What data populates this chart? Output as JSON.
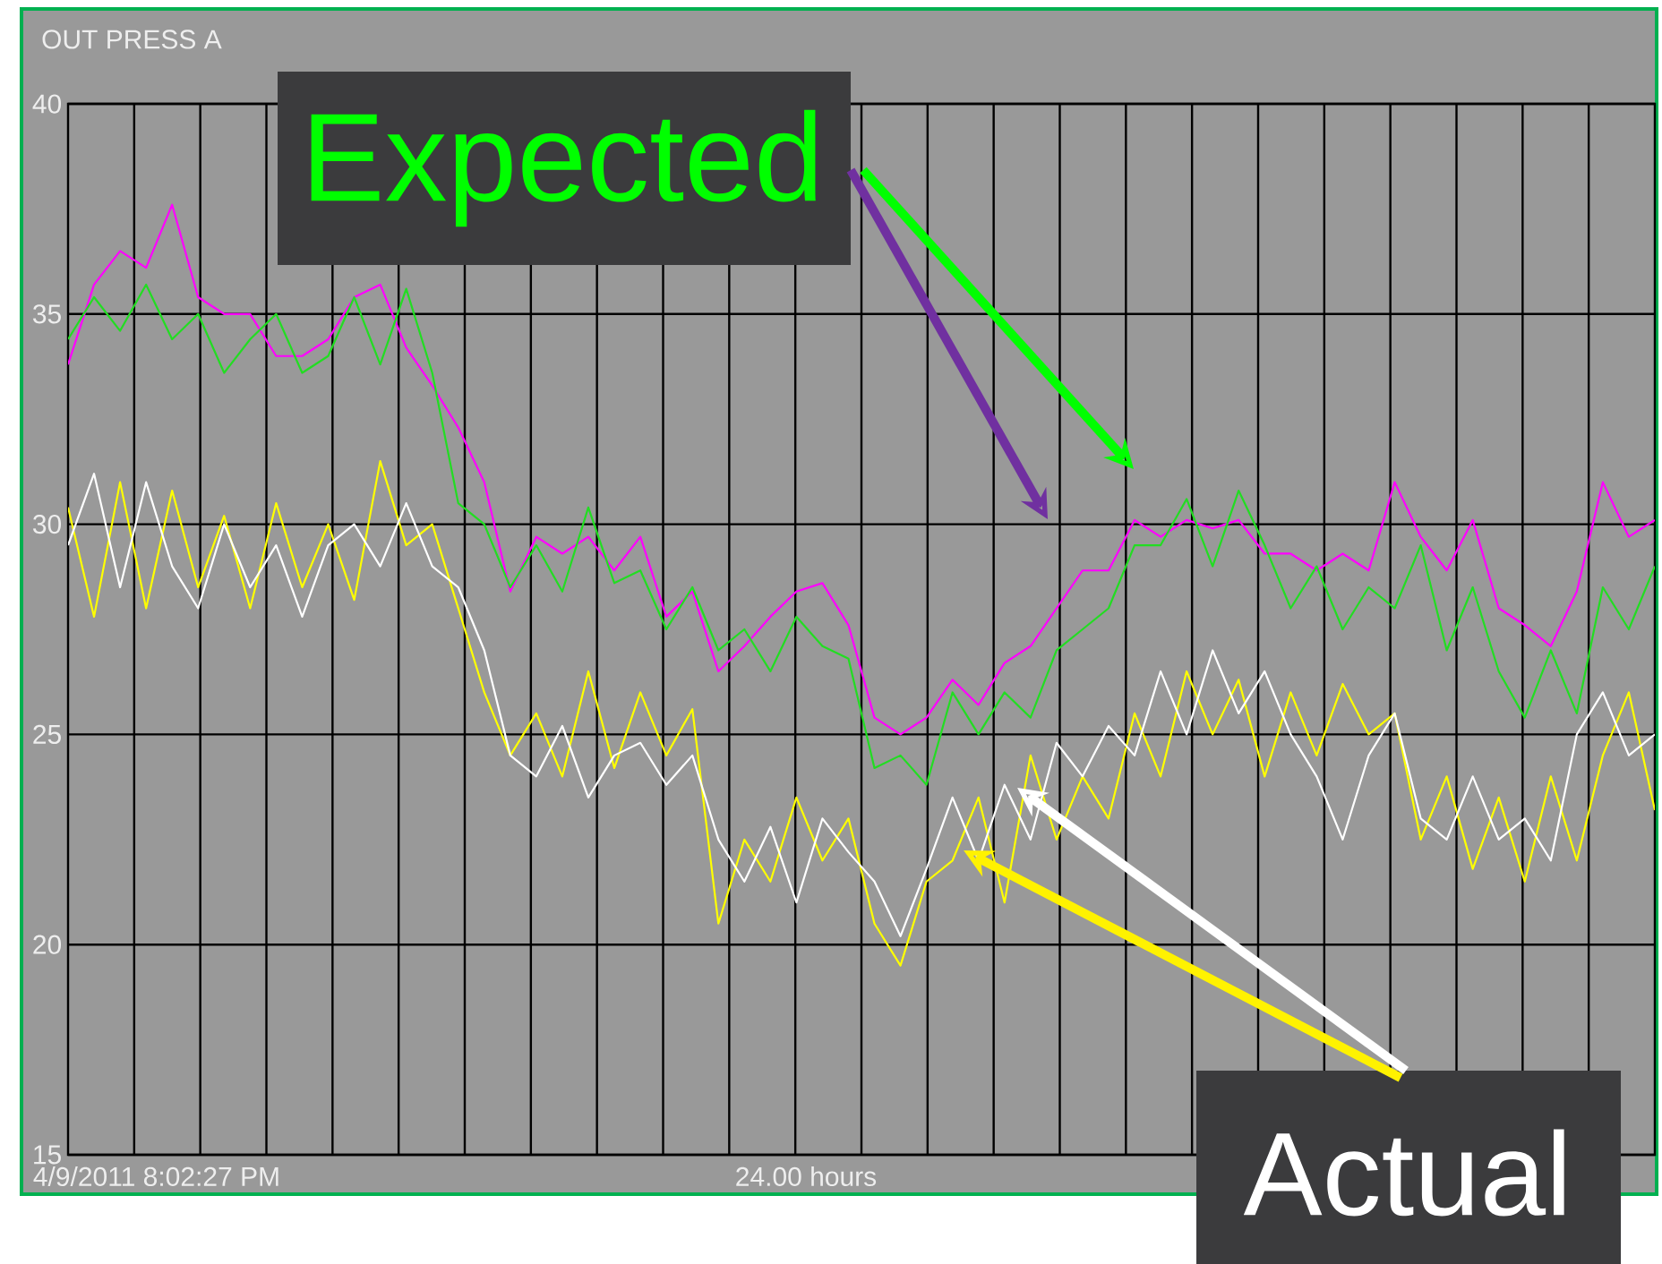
{
  "chart_data": {
    "type": "line",
    "title": "OUT PRESS A",
    "annotations": [
      "4/9/2011 8:02:27 PM",
      "24.00 hours",
      "Expected",
      "Actual"
    ],
    "categories": [
      null,
      null,
      null,
      null,
      null,
      null,
      null,
      null,
      null,
      null,
      null,
      null,
      null,
      null,
      null,
      null,
      null,
      null,
      null,
      null,
      null,
      null,
      null,
      null,
      null,
      null,
      null,
      null,
      null,
      null,
      null,
      null,
      null,
      null,
      null,
      null,
      null,
      null,
      null,
      null,
      null,
      null,
      null,
      null,
      null,
      null,
      null,
      null,
      null,
      null,
      null,
      null,
      null,
      null,
      null,
      null,
      null,
      null,
      null,
      null,
      null,
      null
    ],
    "series": [
      {
        "color": "#ff00ff",
        "values": [
          33.8,
          35.7,
          36.5,
          36.1,
          37.6,
          35.4,
          35.0,
          35.0,
          34.0,
          34.0,
          34.4,
          35.4,
          35.7,
          34.2,
          33.3,
          32.3,
          31.0,
          28.4,
          29.7,
          29.3,
          29.7,
          28.9,
          29.7,
          27.8,
          28.4,
          26.5,
          27.1,
          27.8,
          28.4,
          28.6,
          27.6,
          25.4,
          25.0,
          25.4,
          26.3,
          25.7,
          26.7,
          27.1,
          28.0,
          28.9,
          28.9,
          30.1,
          29.7,
          30.1,
          29.9,
          30.1,
          29.3,
          29.3,
          28.9,
          29.3,
          28.9,
          31.0,
          29.7,
          28.9,
          30.1,
          28.0,
          27.6,
          27.1,
          28.4,
          31.0,
          29.7,
          30.1
        ]
      },
      {
        "color": "#22dd22",
        "values": [
          34.4,
          35.4,
          34.6,
          35.7,
          34.4,
          35.0,
          33.6,
          34.4,
          35.0,
          33.6,
          34.0,
          35.4,
          33.8,
          35.6,
          33.6,
          30.5,
          30.0,
          28.5,
          29.5,
          28.4,
          30.4,
          28.6,
          28.9,
          27.5,
          28.5,
          27.0,
          27.5,
          26.5,
          27.8,
          27.1,
          26.8,
          24.2,
          24.5,
          23.8,
          26.0,
          25.0,
          26.0,
          25.4,
          27.0,
          27.5,
          28.0,
          29.5,
          29.5,
          30.6,
          29.0,
          30.8,
          29.5,
          28.0,
          29.0,
          27.5,
          28.5,
          28.0,
          29.5,
          27.0,
          28.5,
          26.5,
          25.4,
          27.0,
          25.5,
          28.5,
          27.5,
          29.0
        ]
      },
      {
        "color": "#ffff00",
        "values": [
          30.4,
          27.8,
          31.0,
          28.0,
          30.8,
          28.5,
          30.2,
          28.0,
          30.5,
          28.5,
          30.0,
          28.2,
          31.5,
          29.5,
          30.0,
          28.0,
          26.0,
          24.5,
          25.5,
          24.0,
          26.5,
          24.2,
          26.0,
          24.5,
          25.6,
          20.5,
          22.5,
          21.5,
          23.5,
          22.0,
          23.0,
          20.5,
          19.5,
          21.5,
          22.0,
          23.5,
          21.0,
          24.5,
          22.5,
          24.0,
          23.0,
          25.5,
          24.0,
          26.5,
          25.0,
          26.3,
          24.0,
          26.0,
          24.5,
          26.2,
          25.0,
          25.5,
          22.5,
          24.0,
          21.8,
          23.5,
          21.5,
          24.0,
          22.0,
          24.5,
          26.0,
          23.2
        ]
      },
      {
        "color": "#ffffff",
        "values": [
          29.5,
          31.2,
          28.5,
          31.0,
          29.0,
          28.0,
          30.0,
          28.5,
          29.5,
          27.8,
          29.5,
          30.0,
          29.0,
          30.5,
          29.0,
          28.5,
          27.0,
          24.5,
          24.0,
          25.2,
          23.5,
          24.5,
          24.8,
          23.8,
          24.5,
          22.5,
          21.5,
          22.8,
          21.0,
          23.0,
          22.2,
          21.5,
          20.2,
          21.8,
          23.5,
          22.0,
          23.8,
          22.5,
          24.8,
          24.0,
          25.2,
          24.5,
          26.5,
          25.0,
          27.0,
          25.5,
          26.5,
          25.0,
          24.0,
          22.5,
          24.5,
          25.5,
          23.0,
          22.5,
          24.0,
          22.5,
          23.0,
          22.0,
          25.0,
          26.0,
          24.5,
          25.0
        ]
      }
    ],
    "ylim": [
      15,
      40
    ],
    "yticks": [
      15,
      20,
      25,
      30,
      35,
      40
    ],
    "tick_labels": "y",
    "grid": true
  }
}
